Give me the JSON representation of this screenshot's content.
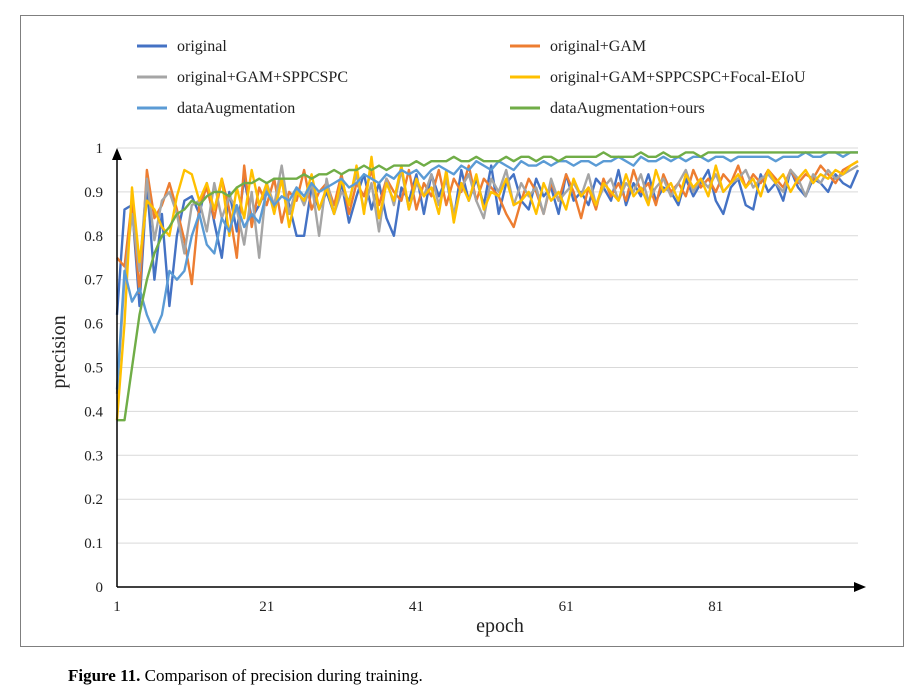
{
  "chart_data": {
    "type": "line",
    "xlabel": "epoch",
    "ylabel": "precision",
    "xlim": [
      1,
      100
    ],
    "ylim": [
      0,
      1
    ],
    "x_ticks": [
      "1",
      "21",
      "41",
      "61",
      "81"
    ],
    "y_ticks": [
      "0",
      "0.1",
      "0.2",
      "0.3",
      "0.4",
      "0.5",
      "0.6",
      "0.7",
      "0.8",
      "0.9",
      "1"
    ],
    "grid": true,
    "legend_position": "top",
    "series": [
      {
        "name": "original",
        "color": "#4472c4",
        "values": [
          0.62,
          0.86,
          0.87,
          0.64,
          0.92,
          0.7,
          0.85,
          0.64,
          0.8,
          0.88,
          0.89,
          0.85,
          0.92,
          0.83,
          0.75,
          0.9,
          0.81,
          0.93,
          0.84,
          0.87,
          0.91,
          0.86,
          0.93,
          0.87,
          0.8,
          0.8,
          0.91,
          0.86,
          0.9,
          0.85,
          0.92,
          0.83,
          0.89,
          0.94,
          0.86,
          0.92,
          0.84,
          0.8,
          0.91,
          0.88,
          0.94,
          0.85,
          0.94,
          0.89,
          0.93,
          0.84,
          0.95,
          0.88,
          0.93,
          0.87,
          0.96,
          0.85,
          0.92,
          0.94,
          0.88,
          0.86,
          0.93,
          0.89,
          0.91,
          0.85,
          0.94,
          0.88,
          0.9,
          0.87,
          0.93,
          0.91,
          0.88,
          0.95,
          0.87,
          0.92,
          0.89,
          0.94,
          0.88,
          0.91,
          0.9,
          0.87,
          0.93,
          0.89,
          0.92,
          0.95,
          0.88,
          0.85,
          0.91,
          0.93,
          0.87,
          0.86,
          0.94,
          0.9,
          0.92,
          0.88,
          0.95,
          0.91,
          0.89,
          0.93,
          0.92,
          0.9,
          0.94,
          0.92,
          0.91,
          0.95
        ]
      },
      {
        "name": "original+GAM",
        "color": "#ed7d31",
        "values": [
          0.75,
          0.73,
          0.88,
          0.67,
          0.95,
          0.84,
          0.87,
          0.92,
          0.86,
          0.79,
          0.69,
          0.87,
          0.91,
          0.84,
          0.93,
          0.86,
          0.75,
          0.96,
          0.82,
          0.91,
          0.87,
          0.93,
          0.83,
          0.9,
          0.88,
          0.95,
          0.86,
          0.9,
          0.92,
          0.87,
          0.94,
          0.85,
          0.92,
          0.89,
          0.95,
          0.87,
          0.93,
          0.9,
          0.88,
          0.95,
          0.86,
          0.92,
          0.89,
          0.95,
          0.87,
          0.93,
          0.9,
          0.96,
          0.88,
          0.93,
          0.91,
          0.89,
          0.85,
          0.82,
          0.88,
          0.93,
          0.9,
          0.85,
          0.92,
          0.88,
          0.94,
          0.9,
          0.84,
          0.91,
          0.86,
          0.93,
          0.89,
          0.92,
          0.88,
          0.95,
          0.9,
          0.92,
          0.87,
          0.94,
          0.9,
          0.92,
          0.89,
          0.95,
          0.91,
          0.93,
          0.9,
          0.94,
          0.92,
          0.96,
          0.91,
          0.94,
          0.92,
          0.95,
          0.93,
          0.91,
          0.95,
          0.92,
          0.94,
          0.93,
          0.96,
          0.94,
          0.92,
          0.95,
          0.96,
          0.97
        ]
      },
      {
        "name": "original+GAM+SPPCSPC",
        "color": "#a5a5a5",
        "values": [
          0.44,
          0.7,
          0.85,
          0.72,
          0.93,
          0.79,
          0.88,
          0.9,
          0.85,
          0.76,
          0.87,
          0.88,
          0.81,
          0.92,
          0.84,
          0.89,
          0.86,
          0.78,
          0.9,
          0.75,
          0.92,
          0.87,
          0.96,
          0.85,
          0.91,
          0.87,
          0.92,
          0.8,
          0.93,
          0.85,
          0.9,
          0.88,
          0.94,
          0.86,
          0.92,
          0.81,
          0.93,
          0.87,
          0.95,
          0.86,
          0.92,
          0.89,
          0.94,
          0.87,
          0.93,
          0.85,
          0.91,
          0.94,
          0.88,
          0.84,
          0.93,
          0.9,
          0.95,
          0.87,
          0.92,
          0.89,
          0.91,
          0.85,
          0.93,
          0.88,
          0.9,
          0.92,
          0.89,
          0.94,
          0.87,
          0.91,
          0.93,
          0.88,
          0.92,
          0.9,
          0.94,
          0.88,
          0.91,
          0.93,
          0.89,
          0.92,
          0.95,
          0.9,
          0.93,
          0.91,
          0.94,
          0.9,
          0.92,
          0.93,
          0.95,
          0.91,
          0.93,
          0.94,
          0.92,
          0.9,
          0.95,
          0.93,
          0.89,
          0.94,
          0.92,
          0.95,
          0.93,
          0.94,
          0.95,
          0.96
        ]
      },
      {
        "name": "original+GAM+SPPCSPC+Focal-EIoU",
        "color": "#ffc000",
        "values": [
          0.38,
          0.6,
          0.91,
          0.74,
          0.88,
          0.86,
          0.82,
          0.8,
          0.89,
          0.95,
          0.94,
          0.88,
          0.92,
          0.86,
          0.93,
          0.8,
          0.91,
          0.84,
          0.95,
          0.87,
          0.92,
          0.85,
          0.93,
          0.82,
          0.9,
          0.88,
          0.94,
          0.86,
          0.91,
          0.85,
          0.93,
          0.87,
          0.96,
          0.85,
          0.98,
          0.84,
          0.92,
          0.88,
          0.96,
          0.86,
          0.93,
          0.89,
          0.91,
          0.85,
          0.95,
          0.83,
          0.92,
          0.88,
          0.94,
          0.86,
          0.9,
          0.89,
          0.93,
          0.87,
          0.88,
          0.9,
          0.85,
          0.92,
          0.88,
          0.9,
          0.86,
          0.93,
          0.89,
          0.91,
          0.87,
          0.92,
          0.9,
          0.88,
          0.94,
          0.89,
          0.91,
          0.87,
          0.95,
          0.9,
          0.92,
          0.88,
          0.94,
          0.91,
          0.93,
          0.89,
          0.96,
          0.9,
          0.92,
          0.94,
          0.91,
          0.93,
          0.89,
          0.95,
          0.92,
          0.94,
          0.9,
          0.93,
          0.95,
          0.92,
          0.94,
          0.93,
          0.95,
          0.94,
          0.96,
          0.97
        ]
      },
      {
        "name": "dataAugmentation",
        "color": "#5b9bd5",
        "values": [
          0.45,
          0.72,
          0.65,
          0.68,
          0.62,
          0.58,
          0.62,
          0.72,
          0.7,
          0.72,
          0.8,
          0.85,
          0.78,
          0.76,
          0.84,
          0.81,
          0.87,
          0.82,
          0.85,
          0.83,
          0.9,
          0.87,
          0.89,
          0.88,
          0.91,
          0.89,
          0.92,
          0.9,
          0.91,
          0.92,
          0.93,
          0.91,
          0.92,
          0.94,
          0.93,
          0.92,
          0.94,
          0.93,
          0.95,
          0.94,
          0.95,
          0.93,
          0.95,
          0.96,
          0.95,
          0.94,
          0.96,
          0.95,
          0.97,
          0.96,
          0.95,
          0.97,
          0.96,
          0.95,
          0.97,
          0.96,
          0.96,
          0.97,
          0.96,
          0.97,
          0.97,
          0.96,
          0.97,
          0.97,
          0.96,
          0.97,
          0.97,
          0.98,
          0.97,
          0.96,
          0.98,
          0.97,
          0.97,
          0.98,
          0.97,
          0.98,
          0.97,
          0.98,
          0.98,
          0.97,
          0.98,
          0.98,
          0.97,
          0.98,
          0.98,
          0.98,
          0.98,
          0.98,
          0.97,
          0.98,
          0.98,
          0.98,
          0.99,
          0.98,
          0.98,
          0.99,
          0.99,
          0.98,
          0.99,
          0.99
        ]
      },
      {
        "name": "dataAugmentation+ours",
        "color": "#70ad47",
        "values": [
          0.38,
          0.38,
          0.5,
          0.62,
          0.7,
          0.76,
          0.8,
          0.82,
          0.85,
          0.86,
          0.88,
          0.87,
          0.89,
          0.9,
          0.9,
          0.89,
          0.91,
          0.92,
          0.92,
          0.93,
          0.92,
          0.93,
          0.93,
          0.93,
          0.93,
          0.94,
          0.93,
          0.94,
          0.94,
          0.95,
          0.94,
          0.95,
          0.95,
          0.96,
          0.95,
          0.96,
          0.95,
          0.96,
          0.96,
          0.96,
          0.97,
          0.96,
          0.97,
          0.97,
          0.97,
          0.98,
          0.97,
          0.97,
          0.98,
          0.97,
          0.97,
          0.97,
          0.98,
          0.97,
          0.98,
          0.98,
          0.97,
          0.98,
          0.98,
          0.97,
          0.98,
          0.98,
          0.98,
          0.98,
          0.98,
          0.99,
          0.98,
          0.98,
          0.98,
          0.98,
          0.99,
          0.98,
          0.98,
          0.99,
          0.98,
          0.98,
          0.99,
          0.99,
          0.98,
          0.99,
          0.99,
          0.99,
          0.99,
          0.99,
          0.99,
          0.99,
          0.99,
          0.99,
          0.99,
          0.99,
          0.99,
          0.99,
          0.99,
          0.99,
          0.99,
          0.99,
          0.99,
          0.99,
          0.99,
          0.99
        ]
      }
    ]
  },
  "caption": {
    "label": "Figure 11.",
    "text": " Comparison of precision during training."
  }
}
